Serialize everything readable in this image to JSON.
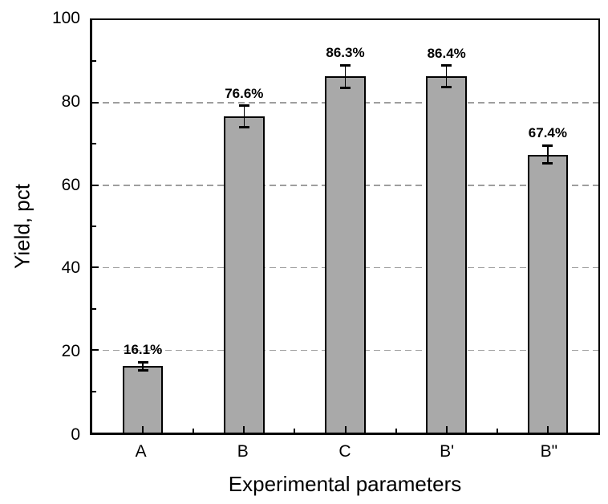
{
  "chart_data": {
    "type": "bar",
    "title": "",
    "xlabel": "Experimental parameters",
    "ylabel": "Yield, pct",
    "categories": [
      "A",
      "B",
      "C",
      "B'",
      "B\""
    ],
    "values": [
      16.1,
      76.6,
      86.3,
      86.4,
      67.4
    ],
    "bar_labels": [
      "16.1%",
      "76.6%",
      "86.3%",
      "86.4%",
      "67.4%"
    ],
    "errors": [
      1.0,
      2.6,
      2.8,
      2.6,
      2.2
    ],
    "ylim": [
      0,
      100
    ],
    "y_major_ticks": [
      0,
      20,
      40,
      60,
      80,
      100
    ],
    "y_minor_step": 10,
    "gridlines_at": [
      20,
      40,
      60,
      80
    ],
    "grid_style": "dashed",
    "legend": "none",
    "bar_width_fraction_of_slot": 0.4,
    "colors": {
      "bar_fill": "#a9a9a9",
      "bar_border": "#000000",
      "grid": "#9e9e9e",
      "axis": "#000000",
      "text": "#000000",
      "background": "#ffffff"
    }
  }
}
